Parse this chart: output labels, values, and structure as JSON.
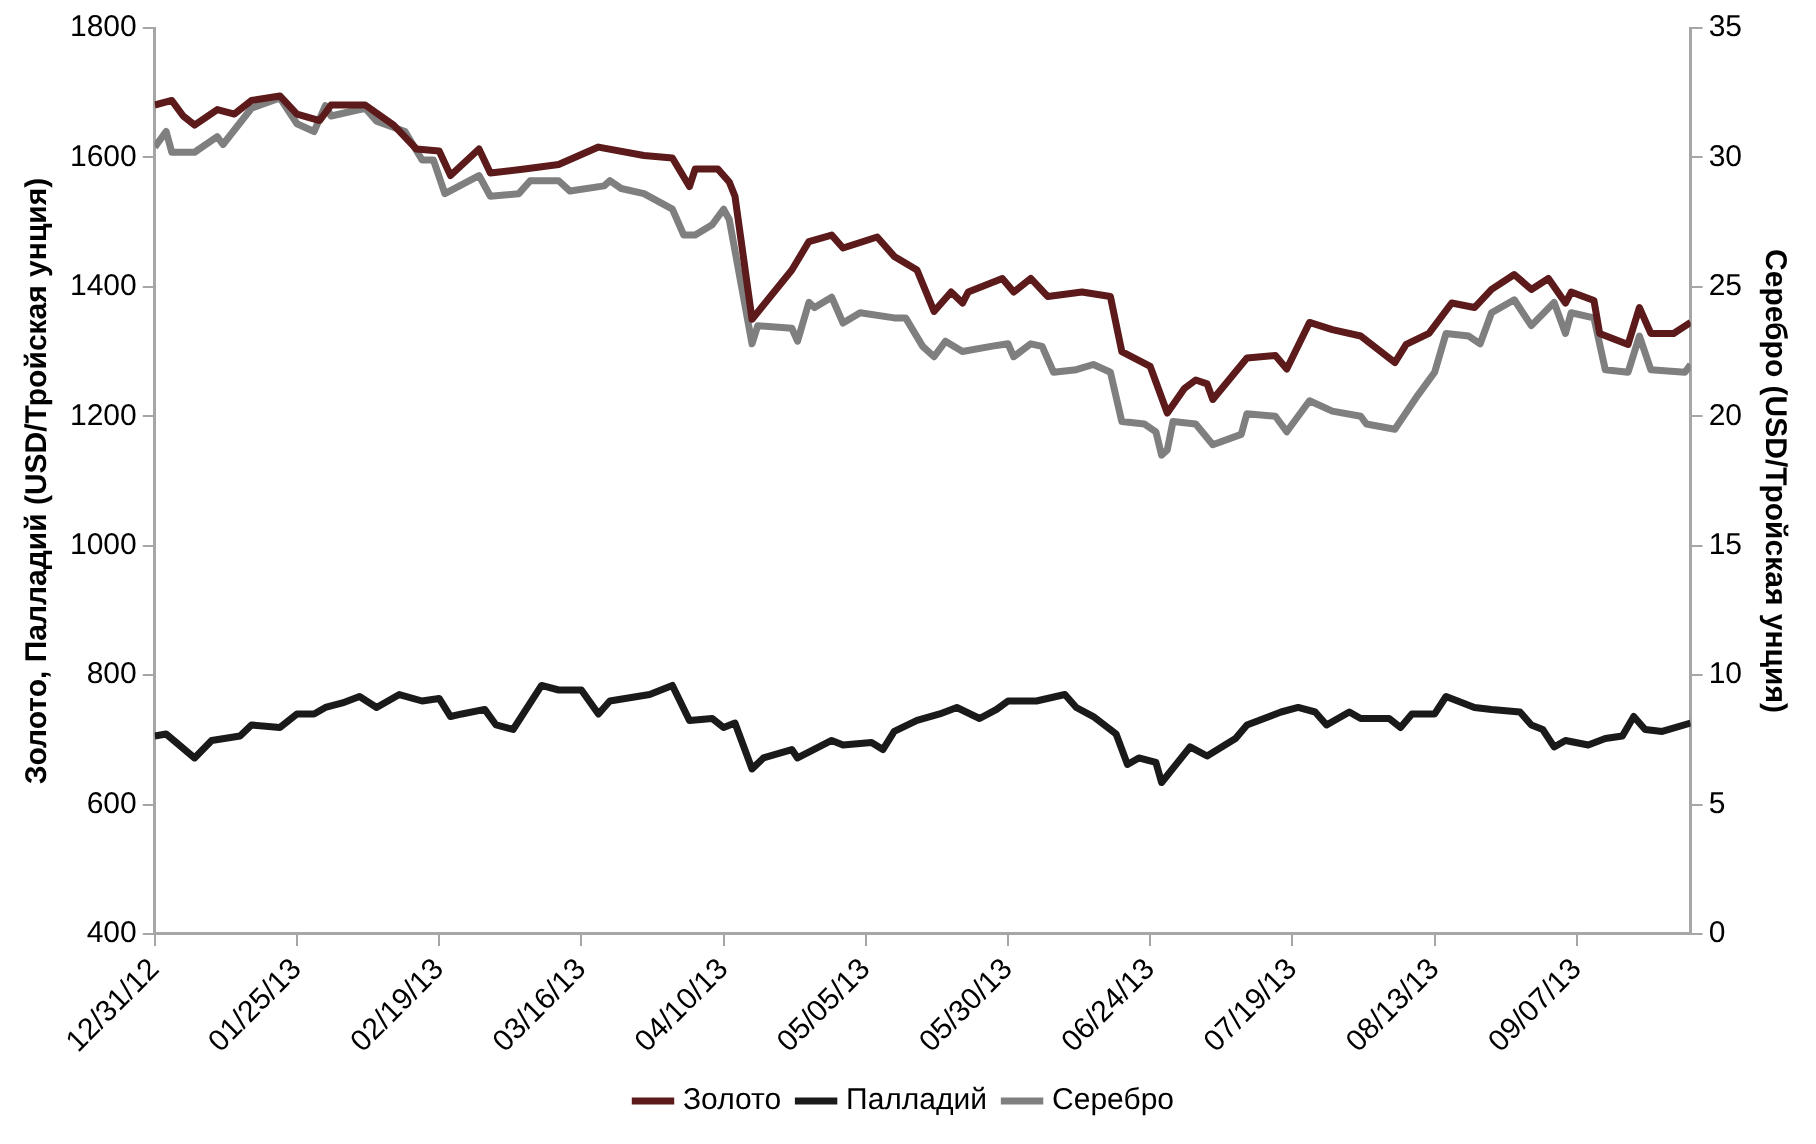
{
  "chart_data": {
    "type": "line",
    "ylabel": "Золото, Палладий (USD/Тройская унция)",
    "y2label": "Серебро (USD/Тройская унция)",
    "xlim": [
      "2012-12-31",
      "2013-09-27"
    ],
    "xticks": [
      {
        "value": "2012-12-31",
        "label": "12/31/12"
      },
      {
        "value": "2013-01-25",
        "label": "01/25/13"
      },
      {
        "value": "2013-02-19",
        "label": "02/19/13"
      },
      {
        "value": "2013-03-16",
        "label": "03/16/13"
      },
      {
        "value": "2013-04-10",
        "label": "04/10/13"
      },
      {
        "value": "2013-05-05",
        "label": "05/05/13"
      },
      {
        "value": "2013-05-30",
        "label": "05/30/13"
      },
      {
        "value": "2013-06-24",
        "label": "06/24/13"
      },
      {
        "value": "2013-07-19",
        "label": "07/19/13"
      },
      {
        "value": "2013-08-13",
        "label": "08/13/13"
      },
      {
        "value": "2013-09-07",
        "label": "09/07/13"
      }
    ],
    "ylim": [
      400,
      1800
    ],
    "yticks": [
      400,
      600,
      800,
      1000,
      1200,
      1400,
      1600,
      1800
    ],
    "y2lim": [
      0,
      35
    ],
    "y2ticks": [
      0,
      5,
      10,
      15,
      20,
      25,
      30,
      35
    ],
    "grid": false,
    "legend": "bottom",
    "line_style": "solid",
    "series": [
      {
        "name": "Золото",
        "color": "#5c1a1b",
        "x": [
          "2012-12-31",
          "2013-01-03",
          "2013-01-05",
          "2013-01-07",
          "2013-01-11",
          "2013-01-14",
          "2013-01-17",
          "2013-01-22",
          "2013-01-25",
          "2013-01-29",
          "2013-01-31",
          "2013-02-06",
          "2013-02-11",
          "2013-02-15",
          "2013-02-19",
          "2013-02-21",
          "2013-02-26",
          "2013-02-28",
          "2013-03-06",
          "2013-03-12",
          "2013-03-19",
          "2013-03-27",
          "2013-04-01",
          "2013-04-04",
          "2013-04-05",
          "2013-04-09",
          "2013-04-11",
          "2013-04-12",
          "2013-04-15",
          "2013-04-22",
          "2013-04-25",
          "2013-04-29",
          "2013-05-01",
          "2013-05-07",
          "2013-05-10",
          "2013-05-14",
          "2013-05-17",
          "2013-05-20",
          "2013-05-22",
          "2013-05-23",
          "2013-05-29",
          "2013-05-31",
          "2013-06-03",
          "2013-06-06",
          "2013-06-12",
          "2013-06-17",
          "2013-06-19",
          "2013-06-24",
          "2013-06-27",
          "2013-06-30",
          "2013-07-02",
          "2013-07-04",
          "2013-07-05",
          "2013-07-11",
          "2013-07-16",
          "2013-07-18",
          "2013-07-22",
          "2013-07-26",
          "2013-07-31",
          "2013-08-06",
          "2013-08-08",
          "2013-08-12",
          "2013-08-16",
          "2013-08-20",
          "2013-08-23",
          "2013-08-27",
          "2013-08-30",
          "2013-09-02",
          "2013-09-05",
          "2013-09-06",
          "2013-09-10",
          "2013-09-11",
          "2013-09-16",
          "2013-09-18",
          "2013-09-20",
          "2013-09-24",
          "2013-09-27"
        ],
        "values": [
          1681,
          1688,
          1664,
          1650,
          1674,
          1667,
          1688,
          1695,
          1667,
          1657,
          1681,
          1681,
          1650,
          1613,
          1610,
          1572,
          1613,
          1576,
          1582,
          1589,
          1616,
          1603,
          1599,
          1555,
          1582,
          1582,
          1562,
          1540,
          1350,
          1426,
          1470,
          1480,
          1460,
          1477,
          1447,
          1426,
          1362,
          1392,
          1375,
          1392,
          1413,
          1392,
          1413,
          1385,
          1392,
          1385,
          1300,
          1277,
          1205,
          1243,
          1256,
          1250,
          1226,
          1290,
          1294,
          1273,
          1345,
          1334,
          1324,
          1283,
          1311,
          1328,
          1375,
          1368,
          1396,
          1419,
          1396,
          1413,
          1375,
          1392,
          1379,
          1328,
          1311,
          1368,
          1328,
          1328,
          1345
        ]
      },
      {
        "name": "Палладий",
        "color": "#1a1a1a",
        "x": [
          "2012-12-31",
          "2013-01-02",
          "2013-01-07",
          "2013-01-10",
          "2013-01-15",
          "2013-01-17",
          "2013-01-22",
          "2013-01-25",
          "2013-01-28",
          "2013-01-30",
          "2013-02-02",
          "2013-02-05",
          "2013-02-08",
          "2013-02-12",
          "2013-02-16",
          "2013-02-19",
          "2013-02-21",
          "2013-02-23",
          "2013-02-27",
          "2013-03-01",
          "2013-03-04",
          "2013-03-09",
          "2013-03-12",
          "2013-03-16",
          "2013-03-19",
          "2013-03-21",
          "2013-03-28",
          "2013-04-01",
          "2013-04-04",
          "2013-04-08",
          "2013-04-10",
          "2013-04-12",
          "2013-04-15",
          "2013-04-17",
          "2013-04-22",
          "2013-04-23",
          "2013-04-29",
          "2013-05-01",
          "2013-05-06",
          "2013-05-08",
          "2013-05-10",
          "2013-05-14",
          "2013-05-18",
          "2013-05-21",
          "2013-05-25",
          "2013-05-28",
          "2013-05-30",
          "2013-06-04",
          "2013-06-09",
          "2013-06-11",
          "2013-06-14",
          "2013-06-18",
          "2013-06-20",
          "2013-06-22",
          "2013-06-25",
          "2013-06-26",
          "2013-07-01",
          "2013-07-04",
          "2013-07-09",
          "2013-07-11",
          "2013-07-17",
          "2013-07-20",
          "2013-07-23",
          "2013-07-25",
          "2013-07-29",
          "2013-07-31",
          "2013-08-05",
          "2013-08-07",
          "2013-08-09",
          "2013-08-13",
          "2013-08-15",
          "2013-08-20",
          "2013-08-23",
          "2013-08-28",
          "2013-08-30",
          "2013-09-01",
          "2013-09-03",
          "2013-09-05",
          "2013-09-09",
          "2013-09-12",
          "2013-09-15",
          "2013-09-17",
          "2013-09-19",
          "2013-09-22",
          "2013-09-27"
        ],
        "values": [
          706,
          709,
          672,
          699,
          706,
          723,
          719,
          740,
          740,
          750,
          757,
          767,
          750,
          770,
          760,
          764,
          736,
          740,
          747,
          723,
          716,
          784,
          777,
          777,
          740,
          760,
          770,
          784,
          730,
          733,
          719,
          726,
          655,
          672,
          685,
          672,
          699,
          692,
          696,
          685,
          713,
          730,
          740,
          750,
          733,
          747,
          760,
          760,
          770,
          750,
          736,
          709,
          662,
          672,
          665,
          634,
          689,
          675,
          702,
          723,
          743,
          750,
          743,
          723,
          743,
          733,
          733,
          719,
          740,
          740,
          767,
          750,
          747,
          743,
          723,
          716,
          689,
          699,
          692,
          702,
          706,
          736,
          716,
          713,
          726
        ]
      },
      {
        "name": "Серебро",
        "color": "#7f7f7f",
        "axis": "y2",
        "x": [
          "2012-12-31",
          "2013-01-02",
          "2013-01-03",
          "2013-01-07",
          "2013-01-11",
          "2013-01-12",
          "2013-01-17",
          "2013-01-22",
          "2013-01-25",
          "2013-01-28",
          "2013-01-30",
          "2013-01-31",
          "2013-02-06",
          "2013-02-08",
          "2013-02-13",
          "2013-02-16",
          "2013-02-18",
          "2013-02-20",
          "2013-02-26",
          "2013-02-28",
          "2013-03-05",
          "2013-03-07",
          "2013-03-12",
          "2013-03-14",
          "2013-03-20",
          "2013-03-21",
          "2013-03-23",
          "2013-03-27",
          "2013-04-01",
          "2013-04-03",
          "2013-04-05",
          "2013-04-08",
          "2013-04-10",
          "2013-04-11",
          "2013-04-15",
          "2013-04-16",
          "2013-04-22",
          "2013-04-23",
          "2013-04-25",
          "2013-04-26",
          "2013-04-29",
          "2013-05-01",
          "2013-05-04",
          "2013-05-10",
          "2013-05-12",
          "2013-05-15",
          "2013-05-17",
          "2013-05-19",
          "2013-05-22",
          "2013-05-27",
          "2013-05-30",
          "2013-05-31",
          "2013-06-03",
          "2013-06-05",
          "2013-06-07",
          "2013-06-11",
          "2013-06-14",
          "2013-06-17",
          "2013-06-19",
          "2013-06-23",
          "2013-06-25",
          "2013-06-26",
          "2013-06-27",
          "2013-06-28",
          "2013-07-02",
          "2013-07-05",
          "2013-07-10",
          "2013-07-11",
          "2013-07-16",
          "2013-07-18",
          "2013-07-22",
          "2013-07-26",
          "2013-07-31",
          "2013-08-01",
          "2013-08-06",
          "2013-08-10",
          "2013-08-13",
          "2013-08-15",
          "2013-08-19",
          "2013-08-21",
          "2013-08-23",
          "2013-08-27",
          "2013-08-30",
          "2013-09-03",
          "2013-09-05",
          "2013-09-06",
          "2013-09-10",
          "2013-09-12",
          "2013-09-16",
          "2013-09-18",
          "2013-09-20",
          "2013-09-26",
          "2013-09-27"
        ],
        "values": [
          30.4,
          31.0,
          30.2,
          30.2,
          30.8,
          30.5,
          31.9,
          32.3,
          31.3,
          31.0,
          32.0,
          31.6,
          31.9,
          31.4,
          31.0,
          29.9,
          29.9,
          28.6,
          29.3,
          28.5,
          28.6,
          29.1,
          29.1,
          28.7,
          28.9,
          29.1,
          28.8,
          28.6,
          28.0,
          27.0,
          27.0,
          27.4,
          28.0,
          27.6,
          22.8,
          23.5,
          23.4,
          22.9,
          24.4,
          24.2,
          24.6,
          23.6,
          24.0,
          23.8,
          23.8,
          22.7,
          22.3,
          22.9,
          22.5,
          22.7,
          22.8,
          22.3,
          22.8,
          22.7,
          21.7,
          21.8,
          22.0,
          21.7,
          19.8,
          19.7,
          19.4,
          18.5,
          18.7,
          19.8,
          19.7,
          18.9,
          19.3,
          20.1,
          20.0,
          19.4,
          20.6,
          20.2,
          20.0,
          19.7,
          19.5,
          20.8,
          21.7,
          23.2,
          23.1,
          22.8,
          24.0,
          24.5,
          23.5,
          24.4,
          23.2,
          24.0,
          23.8,
          21.8,
          21.7,
          23.1,
          21.8,
          21.7,
          22.0
        ]
      }
    ]
  }
}
